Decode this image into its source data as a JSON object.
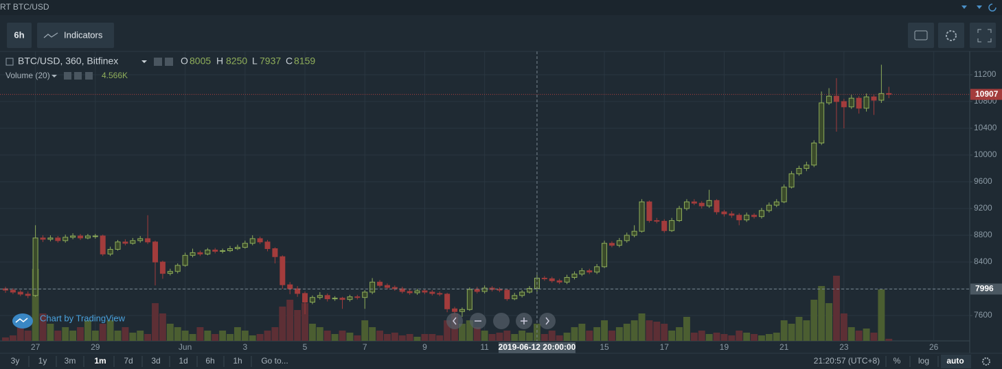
{
  "header": {
    "title": "RT BTC/USD"
  },
  "toolbar": {
    "interval": "6h",
    "indicators": "Indicators"
  },
  "legend": {
    "symbol": "BTC/USD, 360, Bitfinex",
    "keys": [
      "O",
      "H",
      "L",
      "C"
    ]
  },
  "watermark": "Chart by TradingView",
  "bottom_bar": {
    "ranges": [
      "3y",
      "1y",
      "3m",
      "1m",
      "7d",
      "3d",
      "1d",
      "6h",
      "1h"
    ],
    "goto": "Go to...",
    "clock": "21:20:57 (UTC+8)",
    "percent": "%",
    "log": "log",
    "auto": "auto"
  },
  "chart_data": {
    "type": "candlestick",
    "ylim": [
      7221,
      11549
    ],
    "yticks": [
      7600,
      8000,
      8400,
      8800,
      9200,
      9600,
      10000,
      10400,
      10800,
      11200
    ],
    "xlim": [
      -0.734,
      128.8
    ],
    "xticks": [
      {
        "value": 4,
        "label": "27"
      },
      {
        "value": 12,
        "label": "29"
      },
      {
        "value": 24,
        "label": "Jun"
      },
      {
        "value": 32,
        "label": "3"
      },
      {
        "value": 40,
        "label": "5"
      },
      {
        "value": 48,
        "label": "7"
      },
      {
        "value": 56,
        "label": "9"
      },
      {
        "value": 64,
        "label": "11"
      },
      {
        "value": 80,
        "label": "15"
      },
      {
        "value": 88,
        "label": "17"
      },
      {
        "value": 96,
        "label": "19"
      },
      {
        "value": 104,
        "label": "21"
      },
      {
        "value": 112,
        "label": "23"
      },
      {
        "value": 124,
        "label": "26"
      }
    ],
    "grid": true,
    "up_color": "#8fae5a",
    "up_fill": "#3a4a2b",
    "down_color": "#a33c3c",
    "volume_up_color": "#4b5e31",
    "volume_down_color": "#5d2f35",
    "crosshair": {
      "index": 71,
      "price": 7996,
      "time_label": "2019-06-12 20:00:00"
    },
    "open": [
      8000,
      7980,
      7950,
      7920,
      7900,
      8760,
      8740,
      8760,
      8720,
      8770,
      8790,
      8760,
      8790,
      8790,
      8520,
      8590,
      8700,
      8680,
      8720,
      8750,
      8700,
      8400,
      8230,
      8260,
      8350,
      8500,
      8540,
      8520,
      8580,
      8560,
      8570,
      8600,
      8620,
      8680,
      8750,
      8700,
      8600,
      8480,
      8060,
      8000,
      7930,
      7800,
      7870,
      7900,
      7850,
      7860,
      7840,
      7880,
      7870,
      7950,
      8100,
      8050,
      8020,
      8000,
      7960,
      7940,
      7970,
      7950,
      7930,
      7920,
      7700,
      7660,
      7690,
      7990,
      7960,
      8010,
      7990,
      7980,
      7850,
      7900,
      7950,
      8005,
      8159,
      8150,
      8120,
      8100,
      8170,
      8220,
      8270,
      8250,
      8330,
      8680,
      8650,
      8720,
      8800,
      8860,
      9300,
      9020,
      9010,
      8870,
      9020,
      9200,
      9300,
      9280,
      9240,
      9320,
      9150,
      9120,
      9100,
      9030,
      9100,
      9080,
      9170,
      9250,
      9300,
      9520,
      9720,
      9800,
      9850,
      10180,
      10780,
      10880,
      10800,
      10720,
      10850,
      10700,
      10870,
      10820,
      10920
    ],
    "high": [
      8030,
      8010,
      7980,
      7960,
      8950,
      8800,
      8800,
      8790,
      8810,
      8830,
      8820,
      8820,
      8820,
      8810,
      8630,
      8730,
      8740,
      8760,
      8790,
      9100,
      8720,
      8420,
      8300,
      8380,
      8540,
      8600,
      8570,
      8610,
      8610,
      8600,
      8640,
      8660,
      8720,
      8800,
      8780,
      8730,
      8620,
      8500,
      8100,
      8040,
      7960,
      7900,
      7950,
      7930,
      7890,
      7880,
      7910,
      7910,
      7980,
      8160,
      8130,
      8080,
      8050,
      8030,
      7990,
      8000,
      7990,
      7980,
      7960,
      7940,
      7730,
      7720,
      8020,
      8030,
      8050,
      8040,
      8020,
      8000,
      7940,
      7980,
      8040,
      8250,
      8190,
      8180,
      8150,
      8210,
      8260,
      8310,
      8300,
      8370,
      8720,
      8710,
      8760,
      8840,
      8950,
      9340,
      9320,
      9060,
      9040,
      9060,
      9240,
      9340,
      9340,
      9310,
      9480,
      9340,
      9180,
      9160,
      9130,
      9140,
      9130,
      9210,
      9290,
      9340,
      9560,
      9760,
      9840,
      9900,
      10220,
      10950,
      11000,
      11150,
      10840,
      10900,
      10880,
      10920,
      10900,
      11350,
      11020
    ],
    "low": [
      7940,
      7920,
      7890,
      7860,
      7880,
      8700,
      8710,
      8690,
      8690,
      8740,
      8730,
      8740,
      8750,
      8490,
      8490,
      8570,
      8650,
      8660,
      8690,
      8670,
      8050,
      8150,
      8200,
      8230,
      8330,
      8470,
      8490,
      8500,
      8530,
      8530,
      8550,
      8580,
      8600,
      8650,
      8670,
      8560,
      8380,
      8000,
      7920,
      7880,
      7620,
      7770,
      7840,
      7810,
      7820,
      7700,
      7810,
      7840,
      7700,
      7920,
      8020,
      7990,
      7970,
      7930,
      7910,
      7910,
      7920,
      7900,
      7890,
      7650,
      7600,
      7580,
      7670,
      7930,
      7930,
      7960,
      7950,
      7820,
      7830,
      7870,
      7930,
      7937,
      8120,
      8090,
      8070,
      8070,
      8140,
      8190,
      8220,
      8220,
      8310,
      8620,
      8620,
      8690,
      8770,
      8840,
      8990,
      8980,
      8840,
      8850,
      9000,
      9170,
      9250,
      9200,
      9210,
      9110,
      9080,
      9060,
      8950,
      9000,
      9050,
      9050,
      9140,
      9220,
      9280,
      9500,
      9690,
      9760,
      9820,
      10150,
      10750,
      10350,
      10400,
      10690,
      10620,
      10650,
      10600,
      10780,
      10850
    ],
    "close": [
      7980,
      7950,
      7920,
      7900,
      8760,
      8740,
      8760,
      8720,
      8770,
      8790,
      8760,
      8790,
      8790,
      8520,
      8590,
      8700,
      8680,
      8720,
      8750,
      8700,
      8400,
      8230,
      8260,
      8350,
      8500,
      8540,
      8520,
      8580,
      8560,
      8570,
      8600,
      8620,
      8680,
      8750,
      8700,
      8600,
      8480,
      8060,
      8000,
      7930,
      7800,
      7870,
      7900,
      7850,
      7860,
      7840,
      7880,
      7870,
      7950,
      8100,
      8050,
      8020,
      8000,
      7960,
      7940,
      7970,
      7950,
      7930,
      7920,
      7700,
      7660,
      7690,
      7990,
      7960,
      8010,
      7990,
      7980,
      7850,
      7900,
      7950,
      8005,
      8159,
      8150,
      8120,
      8100,
      8170,
      8220,
      8270,
      8250,
      8330,
      8680,
      8650,
      8720,
      8800,
      8860,
      9300,
      9020,
      9010,
      8870,
      9020,
      9200,
      9300,
      9280,
      9240,
      9320,
      9150,
      9120,
      9100,
      9030,
      9100,
      9080,
      9170,
      9250,
      9300,
      9520,
      9720,
      9800,
      9850,
      10180,
      10780,
      10880,
      10800,
      10720,
      10850,
      10700,
      10870,
      10820,
      10920,
      10907
    ],
    "volume": {
      "label": "Volume (20)",
      "value_label": "4.566K",
      "lim": [
        0,
        633000
      ],
      "values": [
        7500,
        12000,
        30000,
        22500,
        157500,
        60000,
        37500,
        22500,
        30000,
        22500,
        30000,
        45000,
        22500,
        37500,
        45000,
        22500,
        30000,
        18000,
        22500,
        15000,
        82500,
        60000,
        37500,
        30000,
        22500,
        15000,
        30000,
        22500,
        15000,
        22500,
        15000,
        30000,
        22500,
        12000,
        15000,
        22500,
        30000,
        75000,
        90000,
        67500,
        82500,
        37500,
        30000,
        22500,
        15000,
        22500,
        18000,
        12000,
        45000,
        30000,
        22500,
        15000,
        18000,
        12000,
        15000,
        9000,
        15000,
        15000,
        12000,
        45000,
        60000,
        37500,
        45000,
        30000,
        22500,
        15000,
        18000,
        22500,
        15000,
        22500,
        18000,
        37500,
        15000,
        22500,
        12000,
        18000,
        30000,
        37500,
        22500,
        30000,
        45000,
        22500,
        30000,
        37500,
        45000,
        60000,
        45000,
        42000,
        37500,
        22500,
        30000,
        52500,
        18000,
        22500,
        15000,
        18000,
        15000,
        12000,
        22500,
        18000,
        15000,
        12000,
        15000,
        18000,
        45000,
        37500,
        52500,
        45000,
        90000,
        120000,
        82500,
        142500,
        60000,
        30000,
        22500,
        27000,
        18000,
        112500,
        4566
      ]
    }
  }
}
